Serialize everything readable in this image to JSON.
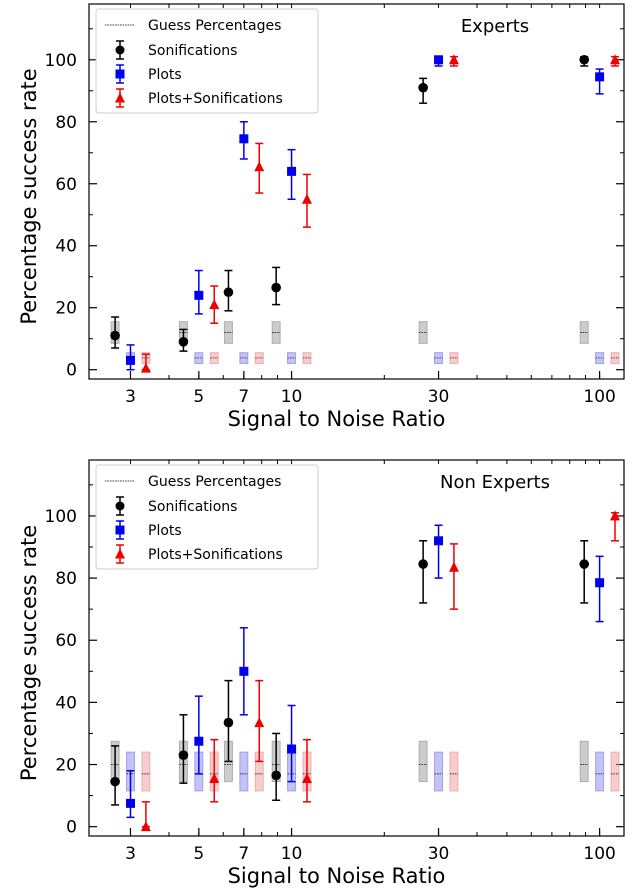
{
  "chart_data": [
    {
      "type": "scatter",
      "title": "Experts",
      "xlabel": "Signal to Noise Ratio",
      "ylabel": "Percentage success rate",
      "xscale": "log",
      "xlim": [
        2.2,
        120
      ],
      "ylim": [
        -3,
        118
      ],
      "xticks": [
        3,
        5,
        7,
        10,
        30,
        100
      ],
      "yticks": [
        0,
        20,
        40,
        60,
        80,
        100
      ],
      "legend_position": "upper-left",
      "colors": {
        "Sonifications": "#000000",
        "Plots": "#0000ee",
        "Plots+Sonifications": "#ee0000"
      },
      "series": [
        {
          "name": "Sonifications",
          "marker": "circle",
          "x": [
            3,
            5,
            7,
            10,
            30,
            100
          ],
          "y": [
            11,
            9,
            25,
            26.5,
            91,
            100
          ],
          "yerr_low": [
            7,
            6,
            19,
            21,
            86,
            98
          ],
          "yerr_high": [
            17,
            13,
            32,
            33,
            94,
            101
          ]
        },
        {
          "name": "Plots",
          "marker": "square",
          "x": [
            3,
            5,
            7,
            10,
            30,
            100
          ],
          "y": [
            3,
            24,
            74.5,
            64,
            100,
            94.5
          ],
          "yerr_low": [
            0,
            18,
            68,
            55,
            98,
            89
          ],
          "yerr_high": [
            8,
            32,
            80,
            71,
            101,
            97
          ]
        },
        {
          "name": "Plots+Sonifications",
          "marker": "triangle",
          "x": [
            3,
            5,
            7,
            10,
            30,
            100
          ],
          "y": [
            0.5,
            21,
            65.5,
            55,
            100,
            100
          ],
          "yerr_low": [
            0,
            15,
            57,
            46,
            98,
            98
          ],
          "yerr_high": [
            5,
            27,
            73,
            63,
            101,
            101
          ]
        }
      ],
      "guess_percentages": {
        "name": "Guess Percentages",
        "bands": [
          {
            "series": "Sonifications",
            "center": 12,
            "low": 8.5,
            "high": 15.5
          },
          {
            "series": "Plots",
            "center": 3.8,
            "low": 2,
            "high": 5.5
          },
          {
            "series": "Plots+Sonifications",
            "center": 3.8,
            "low": 2,
            "high": 5.5
          }
        ]
      }
    },
    {
      "type": "scatter",
      "title": "Non Experts",
      "xlabel": "Signal to Noise Ratio",
      "ylabel": "Percentage success rate",
      "xscale": "log",
      "xlim": [
        2.2,
        120
      ],
      "ylim": [
        -3,
        118
      ],
      "xticks": [
        3,
        5,
        7,
        10,
        30,
        100
      ],
      "yticks": [
        0,
        20,
        40,
        60,
        80,
        100
      ],
      "legend_position": "upper-left",
      "colors": {
        "Sonifications": "#000000",
        "Plots": "#0000ee",
        "Plots+Sonifications": "#ee0000"
      },
      "series": [
        {
          "name": "Sonifications",
          "marker": "circle",
          "x": [
            3,
            5,
            7,
            10,
            30,
            100
          ],
          "y": [
            14.5,
            23,
            33.5,
            16.5,
            84.5,
            84.5
          ],
          "yerr_low": [
            7,
            14,
            21,
            8.5,
            72,
            72
          ],
          "yerr_high": [
            26,
            36,
            47,
            30,
            92,
            92
          ]
        },
        {
          "name": "Plots",
          "marker": "square",
          "x": [
            3,
            5,
            7,
            10,
            30,
            100
          ],
          "y": [
            7.5,
            27.5,
            50,
            25,
            92,
            78.5
          ],
          "yerr_low": [
            3,
            17,
            36,
            14.5,
            80,
            66
          ],
          "yerr_high": [
            18,
            42,
            64,
            39,
            97,
            87
          ]
        },
        {
          "name": "Plots+Sonifications",
          "marker": "triangle",
          "x": [
            3,
            5,
            7,
            10,
            30,
            100
          ],
          "y": [
            0,
            15.5,
            33.5,
            15.5,
            83.5,
            100
          ],
          "yerr_low": [
            0,
            8,
            21,
            8,
            70,
            92
          ],
          "yerr_high": [
            8,
            28,
            47,
            28,
            91,
            101
          ]
        }
      ],
      "guess_percentages": {
        "name": "Guess Percentages",
        "bands": [
          {
            "series": "Sonifications",
            "center": 20,
            "low": 14.5,
            "high": 27.5
          },
          {
            "series": "Plots",
            "center": 17,
            "low": 11.5,
            "high": 24
          },
          {
            "series": "Plots+Sonifications",
            "center": 17,
            "low": 11.5,
            "high": 24
          }
        ]
      }
    }
  ]
}
